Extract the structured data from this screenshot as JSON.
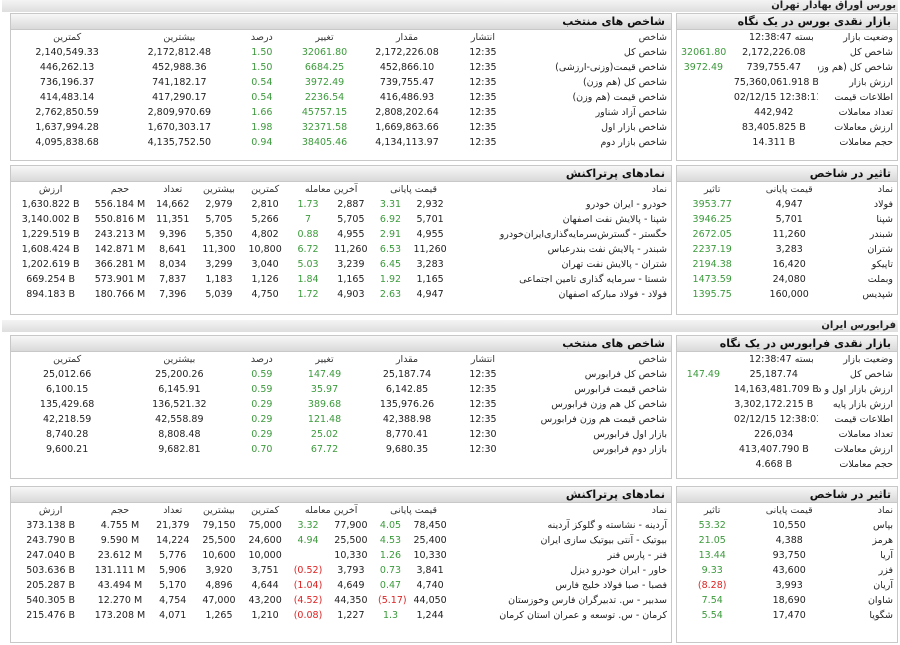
{
  "sections": [
    {
      "title": "بورس اوراق بهادار تهران",
      "indices": {
        "title": "شاخص های منتخب",
        "headers": [
          "شاخص",
          "انتشار",
          "مقدار",
          "تغییر",
          "درصد",
          "بیشترین",
          "کمترین"
        ],
        "rows": [
          [
            "شاخص کل",
            "12:35",
            "2,172,226.08",
            "32061.80",
            "1.50",
            "2,172,812.48",
            "2,140,549.33"
          ],
          [
            "شاخص قیمت(وزنی-ارزشی)",
            "12:35",
            "452,866.10",
            "6684.25",
            "1.50",
            "452,988.36",
            "446,262.13"
          ],
          [
            "شاخص کل (هم وزن)",
            "12:35",
            "739,755.47",
            "3972.49",
            "0.54",
            "741,182.17",
            "736,196.37"
          ],
          [
            "شاخص قیمت (هم وزن)",
            "12:35",
            "416,486.93",
            "2236.54",
            "0.54",
            "417,290.17",
            "414,483.14"
          ],
          [
            "شاخص آزاد شناور",
            "12:35",
            "2,808,202.64",
            "45757.15",
            "1.66",
            "2,809,970.69",
            "2,762,850.59"
          ],
          [
            "شاخص بازار اول",
            "12:35",
            "1,669,863.66",
            "32371.58",
            "1.98",
            "1,670,303.17",
            "1,637,994.28"
          ],
          [
            "شاخص بازار دوم",
            "12:35",
            "4,134,113.97",
            "38405.46",
            "0.94",
            "4,135,752.50",
            "4,095,838.68"
          ]
        ]
      },
      "summary": {
        "title": "بازار نقدی بورس در یک نگاه",
        "rows": [
          [
            "وضعیت بازار",
            "بسته 12:38:47"
          ],
          [
            "شاخص کل",
            "2,172,226.08",
            "32061.80"
          ],
          [
            "شاخص کل (هم وزن)",
            "739,755.47",
            "3972.49"
          ],
          [
            "ارزش بازار",
            "75,360,061.918 B"
          ],
          [
            "اطلاعات قیمت",
            "02/12/15 12:38:11"
          ],
          [
            "تعداد معاملات",
            "442,942"
          ],
          [
            "ارزش معاملات",
            "83,405.825 B"
          ],
          [
            "حجم معاملات",
            "14.311 B"
          ]
        ]
      },
      "active": {
        "title": "نمادهای پرتراکنش",
        "headers": [
          "نماد",
          "قیمت پایانی",
          "آخرین معامله",
          "کمترین",
          "بیشترین",
          "تعداد",
          "حجم",
          "ارزش"
        ],
        "rows": [
          [
            "خودرو - ایران خودرو",
            "2,932",
            "3.31",
            "2,887",
            "1.73",
            "2,810",
            "2,979",
            "14,662",
            "556.184 M",
            "1,630.822 B"
          ],
          [
            "شپنا - پالایش نفت اصفهان",
            "5,701",
            "6.92",
            "5,705",
            "7",
            "5,266",
            "5,705",
            "11,351",
            "550.816 M",
            "3,140.002 B"
          ],
          [
            "خگستر - گسترش‌سرمایه‌گذاری‌ایران‌خودرو",
            "4,955",
            "2.91",
            "4,955",
            "0.88",
            "4,802",
            "5,350",
            "9,396",
            "243.213 M",
            "1,229.519 B"
          ],
          [
            "شبندر - پالایش نفت بندرعباس",
            "11,260",
            "6.53",
            "11,260",
            "6.72",
            "10,800",
            "11,300",
            "8,641",
            "142.871 M",
            "1,608.424 B"
          ],
          [
            "شتران - پالایش نفت تهران",
            "3,283",
            "6.45",
            "3,239",
            "5.03",
            "3,040",
            "3,299",
            "8,034",
            "366.281 M",
            "1,202.619 B"
          ],
          [
            "شستا - سرمایه گذاری تامین اجتماعی",
            "1,165",
            "1.92",
            "1,165",
            "1.84",
            "1,126",
            "1,183",
            "7,837",
            "573.901 M",
            "669.254 B"
          ],
          [
            "فولاد - فولاد مبارکه اصفهان",
            "4,947",
            "2.63",
            "4,903",
            "1.72",
            "4,750",
            "5,039",
            "7,396",
            "180.766 M",
            "894.183 B"
          ]
        ]
      },
      "impact": {
        "title": "تاثیر در شاخص",
        "headers": [
          "نماد",
          "قیمت پایانی",
          "تاثیر"
        ],
        "rows": [
          [
            "فولاد",
            "4,947",
            "3953.77"
          ],
          [
            "شپنا",
            "5,701",
            "3946.25"
          ],
          [
            "شبندر",
            "11,260",
            "2672.05"
          ],
          [
            "شتران",
            "3,283",
            "2237.19"
          ],
          [
            "تاپیکو",
            "16,420",
            "2194.38"
          ],
          [
            "وبملت",
            "24,080",
            "1473.59"
          ],
          [
            "شپدیس",
            "160,000",
            "1395.75"
          ]
        ]
      }
    },
    {
      "title": "فرابورس ایران",
      "indices": {
        "title": "شاخص های منتخب",
        "headers": [
          "شاخص",
          "انتشار",
          "مقدار",
          "تغییر",
          "درصد",
          "بیشترین",
          "کمترین"
        ],
        "rows": [
          [
            "شاخص کل فرابورس",
            "12:35",
            "25,187.74",
            "147.49",
            "0.59",
            "25,200.26",
            "25,012.66"
          ],
          [
            "شاخص قیمت فرابورس",
            "12:35",
            "6,142.85",
            "35.97",
            "0.59",
            "6,145.91",
            "6,100.15"
          ],
          [
            "شاخص کل هم وزن فرابورس",
            "12:35",
            "135,976.26",
            "389.68",
            "0.29",
            "136,521.32",
            "135,429.68"
          ],
          [
            "شاخص قیمت هم وزن فرابورس",
            "12:35",
            "42,388.98",
            "121.48",
            "0.29",
            "42,558.89",
            "42,218.59"
          ],
          [
            "بازار اول فرابورس",
            "12:30",
            "8,770.41",
            "25.02",
            "0.29",
            "8,808.48",
            "8,740.28"
          ],
          [
            "بازار دوم فرابورس",
            "12:30",
            "9,680.35",
            "67.72",
            "0.70",
            "9,682.81",
            "9,600.21"
          ]
        ]
      },
      "summary": {
        "title": "بازار نقدی فرابورس در یک نگاه",
        "rows": [
          [
            "وضعیت بازار",
            "بسته 12:38:47"
          ],
          [
            "شاخص کل",
            "25,187.74",
            "147.49"
          ],
          [
            "ارزش بازار اول و دوم",
            "14,163,481.709 B"
          ],
          [
            "ارزش بازار پایه",
            "3,302,172.215 B"
          ],
          [
            "اطلاعات قیمت",
            "02/12/15 12:38:03"
          ],
          [
            "تعداد معاملات",
            "226,034"
          ],
          [
            "ارزش معاملات",
            "413,407.790 B"
          ],
          [
            "حجم معاملات",
            "4.668 B"
          ]
        ]
      },
      "active": {
        "title": "نمادهای پرتراکنش",
        "headers": [
          "نماد",
          "قیمت پایانی",
          "آخرین معامله",
          "کمترین",
          "بیشترین",
          "تعداد",
          "حجم",
          "ارزش"
        ],
        "rows": [
          [
            "آردینه - نشاسته و گلوکز آردینه",
            "78,450",
            "4.05",
            "77,900",
            "3.32",
            "75,000",
            "79,150",
            "21,379",
            "4.755 M",
            "373.138 B"
          ],
          [
            "بیوتیک - آنتی بیوتیک سازی ایران",
            "25,400",
            "4.53",
            "25,500",
            "4.94",
            "24,600",
            "25,500",
            "14,224",
            "9.590 M",
            "243.790 B"
          ],
          [
            "فنر - پارس فنر",
            "10,330",
            "1.26",
            "10,330",
            null,
            "10,000",
            "10,600",
            "5,776",
            "23.612 M",
            "247.040 B"
          ],
          [
            "خاور - ایران خودرو دیزل",
            "3,841",
            "0.73",
            "3,793",
            "(0.52)",
            "3,751",
            "3,920",
            "5,906",
            "131.111 M",
            "503.636 B"
          ],
          [
            "فصبا - صبا فولاد خلیج فارس",
            "4,740",
            "0.47",
            "4,649",
            "(1.04)",
            "4,644",
            "4,896",
            "5,170",
            "43.494 M",
            "205.287 B"
          ],
          [
            "سدبیر - س. تدبیرگران فارس وخوزستان",
            "44,050",
            "(5.17)",
            "44,350",
            "(4.52)",
            "43,200",
            "47,000",
            "4,754",
            "12.270 M",
            "540.305 B"
          ],
          [
            "کرمان - س. توسعه و عمران استان کرمان",
            "1,244",
            "1.3",
            "1,227",
            "(0.08)",
            "1,210",
            "1,265",
            "4,071",
            "173.208 M",
            "215.476 B"
          ]
        ]
      },
      "impact": {
        "title": "تاثیر در شاخص",
        "headers": [
          "نماد",
          "قیمت پایانی",
          "تاثیر"
        ],
        "rows": [
          [
            "بپاس",
            "10,550",
            "53.32"
          ],
          [
            "هرمز",
            "4,388",
            "21.05"
          ],
          [
            "آریا",
            "93,750",
            "13.44"
          ],
          [
            "فزر",
            "43,600",
            "9.33"
          ],
          [
            "آریان",
            "3,993",
            "(8.28)"
          ],
          [
            "شاوان",
            "18,690",
            "7.54"
          ],
          [
            "شگویا",
            "17,470",
            "5.54"
          ]
        ]
      }
    }
  ]
}
